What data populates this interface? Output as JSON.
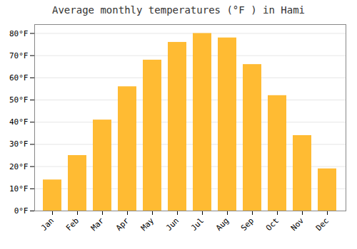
{
  "chart_data": {
    "type": "bar",
    "title": "Average monthly temperatures (°F ) in Hami",
    "categories": [
      "Jan",
      "Feb",
      "Mar",
      "Apr",
      "May",
      "Jun",
      "Jul",
      "Aug",
      "Sep",
      "Oct",
      "Nov",
      "Dec"
    ],
    "values": [
      14,
      25,
      41,
      56,
      68,
      76,
      80,
      78,
      66,
      52,
      34,
      19
    ],
    "color": "#FFBB33",
    "ylim": [
      0,
      84
    ],
    "yticks": [
      {
        "value": 0,
        "label": "0°F"
      },
      {
        "value": 10,
        "label": "10°F"
      },
      {
        "value": 20,
        "label": "20°F"
      },
      {
        "value": 30,
        "label": "30°F"
      },
      {
        "value": 40,
        "label": "40°F"
      },
      {
        "value": 50,
        "label": "50°F"
      },
      {
        "value": 60,
        "label": "60°F"
      },
      {
        "value": 70,
        "label": "70°F"
      },
      {
        "value": 80,
        "label": "80°F"
      }
    ],
    "grid": true
  }
}
